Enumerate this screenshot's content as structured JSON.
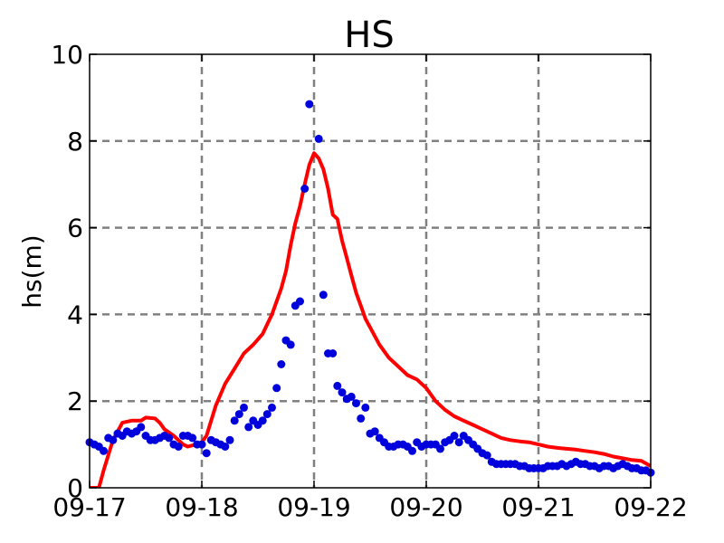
{
  "chart_data": {
    "type": "line",
    "title": "HS",
    "xlabel": "",
    "ylabel": "hs(m)",
    "x_tick_labels": [
      "09-17",
      "09-18",
      "09-19",
      "09-20",
      "09-21",
      "09-22"
    ],
    "y_tick_labels": [
      "0",
      "2",
      "4",
      "6",
      "8",
      "10"
    ],
    "xlim": [
      "09-17 00:00",
      "09-22 00:00"
    ],
    "ylim": [
      0,
      10
    ],
    "grid": true,
    "series": [
      {
        "style": "line",
        "color": "#ff0000",
        "points": [
          [
            "09-17 00:00",
            0.0
          ],
          [
            "09-17 02:00",
            0.0
          ],
          [
            "09-17 03:00",
            0.4
          ],
          [
            "09-17 05:00",
            1.1
          ],
          [
            "09-17 07:00",
            1.5
          ],
          [
            "09-17 09:00",
            1.55
          ],
          [
            "09-17 11:00",
            1.55
          ],
          [
            "09-17 12:00",
            1.62
          ],
          [
            "09-17 14:00",
            1.6
          ],
          [
            "09-17 15:00",
            1.5
          ],
          [
            "09-17 16:00",
            1.35
          ],
          [
            "09-17 18:00",
            1.2
          ],
          [
            "09-17 20:00",
            1.0
          ],
          [
            "09-17 21:00",
            0.95
          ],
          [
            "09-17 22:00",
            0.98
          ],
          [
            "09-18 00:00",
            1.05
          ],
          [
            "09-18 01:00",
            1.2
          ],
          [
            "09-18 03:00",
            1.9
          ],
          [
            "09-18 05:00",
            2.4
          ],
          [
            "09-18 07:00",
            2.75
          ],
          [
            "09-18 09:00",
            3.1
          ],
          [
            "09-18 11:00",
            3.3
          ],
          [
            "09-18 13:00",
            3.55
          ],
          [
            "09-18 15:00",
            4.0
          ],
          [
            "09-18 17:00",
            4.6
          ],
          [
            "09-18 18:00",
            5.0
          ],
          [
            "09-18 19:00",
            5.6
          ],
          [
            "09-18 20:00",
            6.1
          ],
          [
            "09-18 21:00",
            6.5
          ],
          [
            "09-18 22:00",
            7.0
          ],
          [
            "09-18 23:00",
            7.45
          ],
          [
            "09-19 00:00",
            7.72
          ],
          [
            "09-19 01:00",
            7.6
          ],
          [
            "09-19 02:00",
            7.35
          ],
          [
            "09-19 03:00",
            6.9
          ],
          [
            "09-19 04:00",
            6.3
          ],
          [
            "09-19 05:00",
            6.2
          ],
          [
            "09-19 06:00",
            5.7
          ],
          [
            "09-19 07:00",
            5.3
          ],
          [
            "09-19 08:00",
            4.9
          ],
          [
            "09-19 09:00",
            4.5
          ],
          [
            "09-19 10:00",
            4.2
          ],
          [
            "09-19 11:00",
            3.9
          ],
          [
            "09-19 12:00",
            3.7
          ],
          [
            "09-19 14:00",
            3.3
          ],
          [
            "09-19 16:00",
            3.0
          ],
          [
            "09-19 18:00",
            2.8
          ],
          [
            "09-19 20:00",
            2.6
          ],
          [
            "09-19 22:00",
            2.5
          ],
          [
            "09-20 00:00",
            2.3
          ],
          [
            "09-20 02:00",
            2.0
          ],
          [
            "09-20 04:00",
            1.8
          ],
          [
            "09-20 06:00",
            1.65
          ],
          [
            "09-20 08:00",
            1.55
          ],
          [
            "09-20 10:00",
            1.45
          ],
          [
            "09-20 12:00",
            1.35
          ],
          [
            "09-20 14:00",
            1.25
          ],
          [
            "09-20 16:00",
            1.15
          ],
          [
            "09-20 18:00",
            1.1
          ],
          [
            "09-20 20:00",
            1.07
          ],
          [
            "09-20 22:00",
            1.05
          ],
          [
            "09-21 00:00",
            1.0
          ],
          [
            "09-21 02:00",
            0.95
          ],
          [
            "09-21 04:00",
            0.92
          ],
          [
            "09-21 06:00",
            0.9
          ],
          [
            "09-21 08:00",
            0.88
          ],
          [
            "09-21 10:00",
            0.85
          ],
          [
            "09-21 12:00",
            0.82
          ],
          [
            "09-21 14:00",
            0.78
          ],
          [
            "09-21 16:00",
            0.72
          ],
          [
            "09-21 18:00",
            0.68
          ],
          [
            "09-21 20:00",
            0.64
          ],
          [
            "09-21 22:00",
            0.62
          ],
          [
            "09-22 00:00",
            0.5
          ]
        ]
      },
      {
        "style": "scatter",
        "color": "#0000dd",
        "points": [
          [
            "09-17 00:00",
            1.05
          ],
          [
            "09-17 01:00",
            1.0
          ],
          [
            "09-17 02:00",
            0.95
          ],
          [
            "09-17 03:00",
            0.85
          ],
          [
            "09-17 04:00",
            1.15
          ],
          [
            "09-17 05:00",
            1.1
          ],
          [
            "09-17 06:00",
            1.25
          ],
          [
            "09-17 07:00",
            1.2
          ],
          [
            "09-17 08:00",
            1.3
          ],
          [
            "09-17 09:00",
            1.25
          ],
          [
            "09-17 10:00",
            1.3
          ],
          [
            "09-17 11:00",
            1.4
          ],
          [
            "09-17 12:00",
            1.2
          ],
          [
            "09-17 13:00",
            1.1
          ],
          [
            "09-17 14:00",
            1.1
          ],
          [
            "09-17 15:00",
            1.15
          ],
          [
            "09-17 16:00",
            1.2
          ],
          [
            "09-17 17:00",
            1.15
          ],
          [
            "09-17 18:00",
            1.0
          ],
          [
            "09-17 19:00",
            0.95
          ],
          [
            "09-17 20:00",
            1.2
          ],
          [
            "09-17 21:00",
            1.2
          ],
          [
            "09-17 22:00",
            1.15
          ],
          [
            "09-17 23:00",
            1.0
          ],
          [
            "09-18 00:00",
            1.0
          ],
          [
            "09-18 01:00",
            0.8
          ],
          [
            "09-18 02:00",
            1.1
          ],
          [
            "09-18 03:00",
            1.05
          ],
          [
            "09-18 04:00",
            1.0
          ],
          [
            "09-18 05:00",
            0.95
          ],
          [
            "09-18 06:00",
            1.1
          ],
          [
            "09-18 07:00",
            1.55
          ],
          [
            "09-18 08:00",
            1.7
          ],
          [
            "09-18 09:00",
            1.85
          ],
          [
            "09-18 10:00",
            1.4
          ],
          [
            "09-18 11:00",
            1.55
          ],
          [
            "09-18 12:00",
            1.45
          ],
          [
            "09-18 13:00",
            1.55
          ],
          [
            "09-18 14:00",
            1.7
          ],
          [
            "09-18 15:00",
            1.85
          ],
          [
            "09-18 16:00",
            2.3
          ],
          [
            "09-18 17:00",
            2.85
          ],
          [
            "09-18 18:00",
            3.4
          ],
          [
            "09-18 19:00",
            3.3
          ],
          [
            "09-18 20:00",
            4.2
          ],
          [
            "09-18 21:00",
            4.3
          ],
          [
            "09-18 22:00",
            6.9
          ],
          [
            "09-18 23:00",
            8.85
          ],
          [
            "09-19 01:00",
            8.05
          ],
          [
            "09-19 02:00",
            4.45
          ],
          [
            "09-19 03:00",
            3.1
          ],
          [
            "09-19 04:00",
            3.1
          ],
          [
            "09-19 05:00",
            2.35
          ],
          [
            "09-19 06:00",
            2.2
          ],
          [
            "09-19 07:00",
            2.05
          ],
          [
            "09-19 08:00",
            2.1
          ],
          [
            "09-19 09:00",
            1.95
          ],
          [
            "09-19 10:00",
            1.6
          ],
          [
            "09-19 11:00",
            1.85
          ],
          [
            "09-19 12:00",
            1.25
          ],
          [
            "09-19 13:00",
            1.3
          ],
          [
            "09-19 14:00",
            1.15
          ],
          [
            "09-19 15:00",
            1.05
          ],
          [
            "09-19 16:00",
            0.95
          ],
          [
            "09-19 17:00",
            0.95
          ],
          [
            "09-19 18:00",
            1.0
          ],
          [
            "09-19 19:00",
            1.0
          ],
          [
            "09-19 20:00",
            0.95
          ],
          [
            "09-19 21:00",
            0.85
          ],
          [
            "09-19 22:00",
            1.05
          ],
          [
            "09-19 23:00",
            0.95
          ],
          [
            "09-20 00:00",
            1.0
          ],
          [
            "09-20 01:00",
            1.0
          ],
          [
            "09-20 02:00",
            1.0
          ],
          [
            "09-20 03:00",
            0.9
          ],
          [
            "09-20 04:00",
            1.05
          ],
          [
            "09-20 05:00",
            1.1
          ],
          [
            "09-20 06:00",
            1.2
          ],
          [
            "09-20 07:00",
            1.05
          ],
          [
            "09-20 08:00",
            1.2
          ],
          [
            "09-20 09:00",
            1.1
          ],
          [
            "09-20 10:00",
            1.0
          ],
          [
            "09-20 11:00",
            0.9
          ],
          [
            "09-20 12:00",
            0.8
          ],
          [
            "09-20 13:00",
            0.75
          ],
          [
            "09-20 14:00",
            0.6
          ],
          [
            "09-20 15:00",
            0.55
          ],
          [
            "09-20 16:00",
            0.55
          ],
          [
            "09-20 17:00",
            0.55
          ],
          [
            "09-20 18:00",
            0.55
          ],
          [
            "09-20 19:00",
            0.55
          ],
          [
            "09-20 20:00",
            0.5
          ],
          [
            "09-20 21:00",
            0.5
          ],
          [
            "09-20 22:00",
            0.45
          ],
          [
            "09-20 23:00",
            0.45
          ],
          [
            "09-21 00:00",
            0.45
          ],
          [
            "09-21 01:00",
            0.45
          ],
          [
            "09-21 02:00",
            0.5
          ],
          [
            "09-21 03:00",
            0.5
          ],
          [
            "09-21 04:00",
            0.5
          ],
          [
            "09-21 05:00",
            0.55
          ],
          [
            "09-21 06:00",
            0.5
          ],
          [
            "09-21 07:00",
            0.55
          ],
          [
            "09-21 08:00",
            0.6
          ],
          [
            "09-21 09:00",
            0.55
          ],
          [
            "09-21 10:00",
            0.55
          ],
          [
            "09-21 11:00",
            0.5
          ],
          [
            "09-21 12:00",
            0.5
          ],
          [
            "09-21 13:00",
            0.45
          ],
          [
            "09-21 14:00",
            0.5
          ],
          [
            "09-21 15:00",
            0.5
          ],
          [
            "09-21 16:00",
            0.45
          ],
          [
            "09-21 17:00",
            0.5
          ],
          [
            "09-21 18:00",
            0.55
          ],
          [
            "09-21 19:00",
            0.5
          ],
          [
            "09-21 20:00",
            0.45
          ],
          [
            "09-21 21:00",
            0.45
          ],
          [
            "09-21 22:00",
            0.4
          ],
          [
            "09-21 23:00",
            0.4
          ],
          [
            "09-22 00:00",
            0.35
          ]
        ]
      }
    ]
  }
}
